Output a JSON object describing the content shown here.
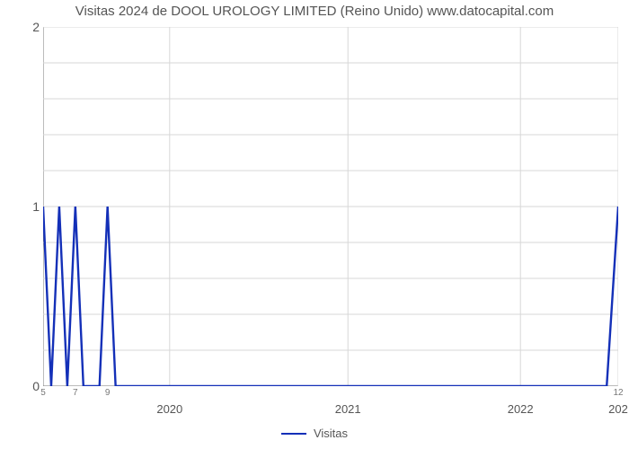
{
  "chart": {
    "type": "line",
    "title": "Visitas 2024 de DOOL UROLOGY LIMITED (Reino Unido) www.datocapital.com",
    "title_fontsize": 15,
    "title_color": "#555555",
    "background_color": "#ffffff",
    "plot_background": "#ffffff",
    "grid_color": "#d7d7d7",
    "grid_width": 1,
    "axis_color": "#777777",
    "tick_font_size": 14,
    "tick_color": "#555555",
    "x_minor_labels": [
      "5",
      "7",
      "9",
      "12"
    ],
    "x_minor_positions": [
      0.0,
      5.6,
      11.2,
      100.0
    ],
    "x_major_labels": [
      "2020",
      "2021",
      "2022",
      "202"
    ],
    "x_major_positions": [
      22,
      53,
      83,
      100
    ],
    "y_labels": [
      "0",
      "1",
      "2"
    ],
    "y_major_count": 2,
    "y_minor_per_major": 5,
    "ylim": [
      0,
      2
    ],
    "series": {
      "name": "Visitas",
      "color": "#1430b8",
      "line_width": 2.4,
      "legend_label": "Visitas",
      "points": [
        [
          0.0,
          1.0
        ],
        [
          1.4,
          0.0
        ],
        [
          2.8,
          1.0
        ],
        [
          4.2,
          0.0
        ],
        [
          5.6,
          1.0
        ],
        [
          7.0,
          0.0
        ],
        [
          8.4,
          0.0
        ],
        [
          9.8,
          0.0
        ],
        [
          11.2,
          1.0
        ],
        [
          12.6,
          0.0
        ],
        [
          14.0,
          0.0
        ],
        [
          16.0,
          0.0
        ],
        [
          20.0,
          0.0
        ],
        [
          25.0,
          0.0
        ],
        [
          30.0,
          0.0
        ],
        [
          40.0,
          0.0
        ],
        [
          50.0,
          0.0
        ],
        [
          60.0,
          0.0
        ],
        [
          70.0,
          0.0
        ],
        [
          80.0,
          0.0
        ],
        [
          90.0,
          0.0
        ],
        [
          95.0,
          0.0
        ],
        [
          98.0,
          0.0
        ],
        [
          100.0,
          1.0
        ]
      ]
    }
  }
}
